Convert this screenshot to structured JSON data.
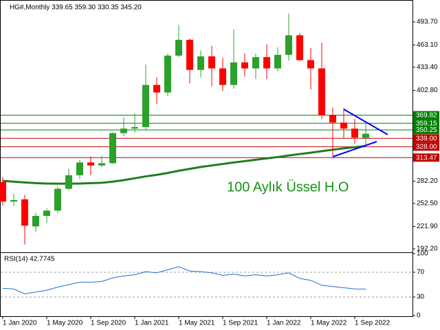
{
  "chart_data": [
    {
      "type": "candlestick",
      "title": "HG#,Monthly  339.65 359.30 330.35 345.20",
      "categories": [
        "1 Jan 2020",
        null,
        null,
        null,
        "1 May 2020",
        null,
        null,
        null,
        "1 Sep 2020",
        null,
        null,
        null,
        "1 Jan 2021",
        null,
        null,
        null,
        "1 May 2021",
        null,
        null,
        null,
        "1 Sep 2021",
        null,
        null,
        null,
        "1 Jan 2022",
        null,
        null,
        null,
        "1 May 2022",
        null,
        null,
        null,
        "1 Sep 2022",
        null
      ],
      "open": [
        281,
        255,
        258,
        222,
        236,
        243,
        272,
        290,
        307,
        303,
        306,
        346,
        352,
        354,
        410,
        400,
        449,
        470,
        430,
        448,
        432,
        410,
        440,
        432,
        447,
        432,
        450,
        476,
        443,
        432,
        370,
        360,
        352,
        339.65
      ],
      "high": [
        288,
        265,
        264,
        240,
        246,
        275,
        299,
        310,
        315,
        316,
        347,
        367,
        372,
        437,
        420,
        452,
        490,
        472,
        456,
        462,
        446,
        484,
        452,
        452,
        464,
        460,
        505,
        479,
        459,
        466,
        380,
        379,
        365,
        359.3
      ],
      "low": [
        250,
        249,
        198,
        215,
        227,
        240,
        270,
        285,
        290,
        301,
        305,
        342,
        347,
        351,
        385,
        395,
        447,
        412,
        420,
        408,
        402,
        405,
        421,
        418,
        418,
        428,
        442,
        442,
        404,
        365,
        315,
        339,
        332,
        330.35
      ],
      "close": [
        255,
        257,
        223,
        236,
        243,
        272,
        290,
        307,
        303,
        306,
        346,
        352,
        354,
        410,
        400,
        449,
        470,
        430,
        448,
        432,
        410,
        440,
        432,
        447,
        432,
        450,
        476,
        443,
        432,
        370,
        360,
        352,
        340,
        345.2
      ],
      "up_color": "#2ca02c",
      "down_color": "#ff0000",
      "ema": {
        "color": "#1e7d1e",
        "values": [
          282.5,
          281.5,
          280.5,
          279.5,
          279,
          278.8,
          278.8,
          279,
          279.5,
          280,
          281.5,
          283.5,
          286,
          288.5,
          290.5,
          293,
          296,
          298.5,
          301,
          303,
          305,
          307,
          308.8,
          310.6,
          312.4,
          314.2,
          316.3,
          318.2,
          320,
          322,
          324,
          325.8,
          327.3,
          328.8
        ]
      },
      "annotation": "100 Aylık Üssel H.O",
      "ylim": [
        187.6,
        522.9
      ],
      "yticks": [
        {
          "value": 493.7,
          "label": "493.70"
        },
        {
          "value": 463.1,
          "label": "463.10"
        },
        {
          "value": 433.4,
          "label": "433.40"
        },
        {
          "value": 402.8,
          "label": "402.80"
        },
        {
          "value": 282.2,
          "label": "282.20"
        },
        {
          "value": 252.5,
          "label": "252.50"
        },
        {
          "value": 221.9,
          "label": "221.90"
        },
        {
          "value": 192.2,
          "label": "192.20"
        }
      ],
      "levels": [
        {
          "value": 369.82,
          "label": "369.82",
          "color": "#008000"
        },
        {
          "value": 359.15,
          "label": "359.15",
          "color": "#008000"
        },
        {
          "value": 350.25,
          "label": "350.25",
          "color": "#008000"
        },
        {
          "value": 339.0,
          "label": "339.00",
          "color": "#c00000"
        },
        {
          "value": 328.0,
          "label": "328.00",
          "color": "#c00000"
        },
        {
          "value": 313.47,
          "label": "313.47",
          "color": "#c00000"
        }
      ],
      "trendlines": [
        {
          "color": "#0000ff",
          "x": [
            31,
            35
          ],
          "y": [
            377.7,
            343.9
          ]
        },
        {
          "color": "#0000ff",
          "x": [
            30,
            34
          ],
          "y": [
            314.6,
            334.7
          ]
        }
      ]
    },
    {
      "type": "line",
      "title": "RSI(14) 42.7745",
      "color": "#1e6fd0",
      "values": [
        44,
        43,
        35,
        38,
        41,
        46,
        50,
        54,
        54,
        55,
        61,
        64,
        66,
        71,
        69,
        74,
        79,
        72,
        71,
        69,
        65,
        67,
        64,
        66,
        64,
        66,
        69,
        60,
        57,
        49,
        47,
        45,
        43,
        42.7745
      ],
      "ylim": [
        0,
        100
      ],
      "yticks": [
        100,
        70,
        30,
        0
      ]
    }
  ]
}
